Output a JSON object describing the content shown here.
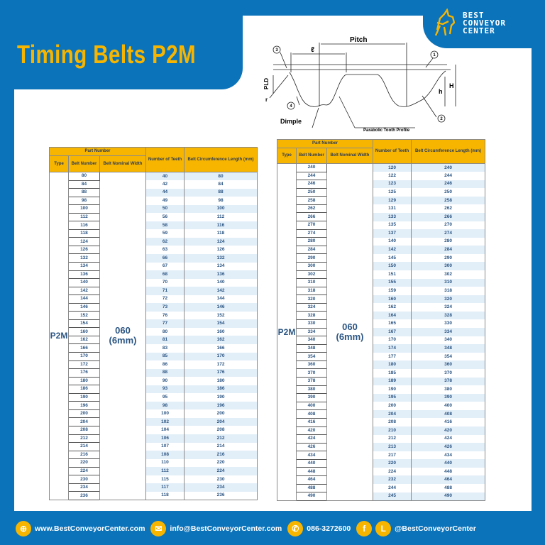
{
  "title": "Timing Belts P2M",
  "logo": {
    "line1": "BEST",
    "line2": "CONVEYOR",
    "line3": "CENTER"
  },
  "colors": {
    "brand_blue": "#0b73ba",
    "accent_yellow": "#f7b500",
    "row_stripe": "#e2eef8"
  },
  "diagram": {
    "pitch": "Pitch",
    "l": "ℓ",
    "pld": "PLD",
    "r": "r",
    "h_small": "h",
    "h_big": "H",
    "dimple": "Dimple",
    "profile": "Parabolic Tooth Profile",
    "markers": [
      "1",
      "2",
      "3",
      "4"
    ]
  },
  "table_headers": {
    "part_number": "Part Number",
    "type": "Type",
    "belt_number": "Belt Number",
    "nominal_width": "Belt Nominal Width",
    "teeth": "Number of Teeth",
    "length": "Belt Circumference Length (mm)"
  },
  "type": "P2M",
  "width_code": "060",
  "width_mm": "(6mm)",
  "left_table": {
    "belt_numbers": [
      "80",
      "84",
      "88",
      "98",
      "100",
      "112",
      "116",
      "118",
      "124",
      "126",
      "132",
      "134",
      "136",
      "140",
      "142",
      "144",
      "146",
      "152",
      "154",
      "160",
      "162",
      "166",
      "170",
      "172",
      "176",
      "180",
      "186",
      "190",
      "196",
      "200",
      "204",
      "208",
      "212",
      "214",
      "216",
      "220",
      "224",
      "230",
      "234",
      "236"
    ],
    "teeth": [
      "40",
      "42",
      "44",
      "49",
      "50",
      "56",
      "58",
      "59",
      "62",
      "63",
      "66",
      "67",
      "68",
      "70",
      "71",
      "72",
      "73",
      "76",
      "77",
      "80",
      "81",
      "83",
      "85",
      "86",
      "88",
      "90",
      "93",
      "95",
      "98",
      "100",
      "102",
      "104",
      "106",
      "107",
      "108",
      "110",
      "112",
      "115",
      "117",
      "118"
    ],
    "lengths": [
      "80",
      "84",
      "88",
      "98",
      "100",
      "112",
      "116",
      "118",
      "124",
      "126",
      "132",
      "134",
      "136",
      "140",
      "142",
      "144",
      "146",
      "152",
      "154",
      "160",
      "162",
      "166",
      "170",
      "172",
      "176",
      "180",
      "186",
      "190",
      "196",
      "200",
      "204",
      "208",
      "212",
      "214",
      "216",
      "220",
      "224",
      "230",
      "234",
      "236"
    ]
  },
  "right_table": {
    "belt_numbers": [
      "240",
      "244",
      "246",
      "250",
      "258",
      "262",
      "266",
      "270",
      "274",
      "280",
      "284",
      "290",
      "300",
      "302",
      "310",
      "318",
      "320",
      "324",
      "328",
      "330",
      "334",
      "340",
      "348",
      "354",
      "360",
      "370",
      "378",
      "380",
      "390",
      "400",
      "408",
      "416",
      "420",
      "424",
      "426",
      "434",
      "440",
      "448",
      "464",
      "488",
      "490"
    ],
    "teeth": [
      "120",
      "122",
      "123",
      "125",
      "129",
      "131",
      "133",
      "135",
      "137",
      "140",
      "142",
      "145",
      "150",
      "151",
      "155",
      "159",
      "160",
      "162",
      "164",
      "165",
      "167",
      "170",
      "174",
      "177",
      "180",
      "185",
      "189",
      "190",
      "195",
      "200",
      "204",
      "208",
      "210",
      "212",
      "213",
      "217",
      "220",
      "224",
      "232",
      "244",
      "245"
    ],
    "lengths": [
      "240",
      "244",
      "246",
      "250",
      "258",
      "262",
      "266",
      "270",
      "274",
      "280",
      "284",
      "290",
      "300",
      "302",
      "310",
      "318",
      "320",
      "324",
      "328",
      "330",
      "334",
      "340",
      "348",
      "354",
      "360",
      "370",
      "378",
      "380",
      "390",
      "400",
      "408",
      "416",
      "420",
      "424",
      "426",
      "434",
      "440",
      "448",
      "464",
      "488",
      "490"
    ]
  },
  "footer": {
    "website": "www.BestConveyorCenter.com",
    "email": "info@BestConveyorCenter.com",
    "phone": "086-3272600",
    "social": "@BestConveyorCenter",
    "line_icon_letter": "L",
    "facebook_icon_letter": "f"
  }
}
